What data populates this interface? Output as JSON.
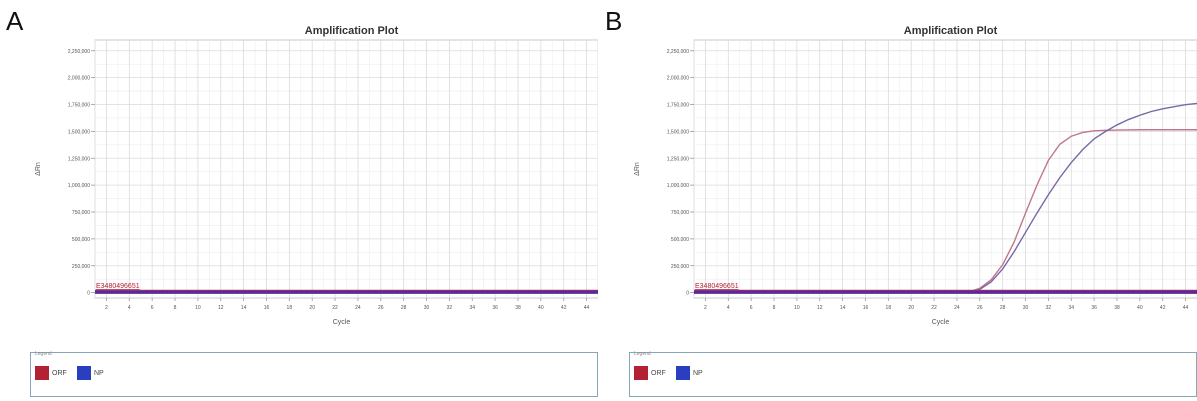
{
  "panels": [
    {
      "letter": "A",
      "legend_title": "Legend",
      "legend": [
        {
          "name": "ORF",
          "color": "#b22234"
        },
        {
          "name": "NP",
          "color": "#2a3fbf"
        }
      ]
    },
    {
      "letter": "B",
      "legend_title": "Legend",
      "legend": [
        {
          "name": "ORF",
          "color": "#b22234"
        },
        {
          "name": "NP",
          "color": "#2a3fbf"
        }
      ]
    }
  ],
  "chart_data": [
    {
      "type": "line",
      "title": "Amplification Plot",
      "xlabel": "Cycle",
      "ylabel": "ΔRn",
      "xlim": [
        1,
        45
      ],
      "ylim": [
        -50000,
        2350000
      ],
      "x_ticks": [
        2,
        4,
        6,
        8,
        10,
        12,
        14,
        16,
        18,
        20,
        22,
        24,
        26,
        28,
        30,
        32,
        34,
        36,
        38,
        40,
        42,
        44
      ],
      "y_ticks": [
        0,
        250000,
        500000,
        750000,
        1000000,
        1250000,
        1500000,
        1750000,
        2000000,
        2250000
      ],
      "y_tick_labels": [
        "0",
        "250,000",
        "500,000",
        "750,000",
        "1,000,000",
        "1,250,000",
        "1,500,000",
        "1,750,000",
        "2,000,000",
        "2,250,000"
      ],
      "threshold": {
        "value": 5000,
        "label": "E3480496651"
      },
      "grid": true,
      "series": [
        {
          "name": "ORF",
          "color": "#b06080",
          "x": [
            1,
            45
          ],
          "y": [
            0,
            0
          ]
        },
        {
          "name": "NP",
          "color": "#4a2fa8",
          "x": [
            1,
            45
          ],
          "y": [
            0,
            0
          ]
        }
      ],
      "baseline_color": "#5a2a9a"
    },
    {
      "type": "line",
      "title": "Amplification Plot",
      "xlabel": "Cycle",
      "ylabel": "ΔRn",
      "xlim": [
        1,
        45
      ],
      "ylim": [
        -50000,
        2350000
      ],
      "x_ticks": [
        2,
        4,
        6,
        8,
        10,
        12,
        14,
        16,
        18,
        20,
        22,
        24,
        26,
        28,
        30,
        32,
        34,
        36,
        38,
        40,
        42,
        44
      ],
      "y_ticks": [
        0,
        250000,
        500000,
        750000,
        1000000,
        1250000,
        1500000,
        1750000,
        2000000,
        2250000
      ],
      "y_tick_labels": [
        "0",
        "250,000",
        "500,000",
        "750,000",
        "1,000,000",
        "1,250,000",
        "1,500,000",
        "1,750,000",
        "2,000,000",
        "2,250,000"
      ],
      "threshold": {
        "value": 5000,
        "label": "E3480496651"
      },
      "grid": true,
      "series": [
        {
          "name": "ORF",
          "color": "#c07888",
          "x": [
            1,
            24,
            25,
            26,
            27,
            28,
            29,
            30,
            31,
            32,
            33,
            34,
            35,
            36,
            37,
            38,
            40,
            42,
            45
          ],
          "y": [
            0,
            0,
            5000,
            40000,
            120000,
            260000,
            470000,
            740000,
            1000000,
            1230000,
            1380000,
            1455000,
            1490000,
            1505000,
            1510000,
            1512000,
            1515000,
            1515000,
            1515000
          ]
        },
        {
          "name": "NP",
          "color": "#7868a8",
          "x": [
            1,
            24,
            25,
            26,
            27,
            28,
            29,
            30,
            31,
            32,
            33,
            34,
            35,
            36,
            37,
            38,
            39,
            40,
            41,
            42,
            43,
            44,
            45
          ],
          "y": [
            0,
            0,
            5000,
            30000,
            100000,
            220000,
            380000,
            560000,
            740000,
            910000,
            1070000,
            1210000,
            1330000,
            1430000,
            1500000,
            1560000,
            1610000,
            1650000,
            1685000,
            1710000,
            1730000,
            1748000,
            1760000
          ]
        }
      ],
      "baseline_color": "#5a2a9a"
    }
  ]
}
